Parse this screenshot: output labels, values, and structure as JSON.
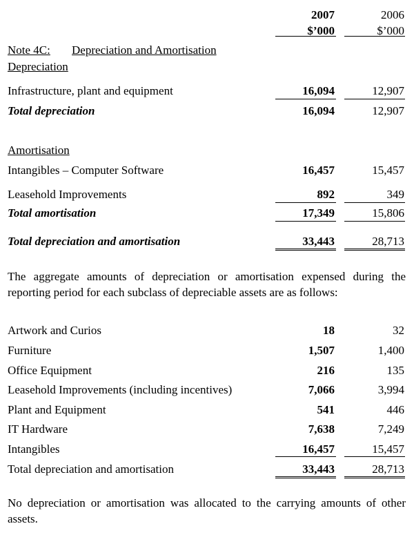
{
  "header": {
    "current": {
      "year": "2007",
      "unit": "$’000"
    },
    "prior": {
      "year": "2006",
      "unit": "$’000"
    }
  },
  "note": {
    "number": "Note 4C:",
    "title": "Depreciation and Amortisation"
  },
  "depreciation": {
    "heading": "Depreciation",
    "rows": [
      [
        "Infrastructure, plant and equipment",
        "16,094",
        "12,907"
      ]
    ],
    "total": [
      "Total depreciation",
      "16,094",
      "12,907"
    ]
  },
  "amortisation": {
    "heading": "Amortisation",
    "rows": [
      [
        "Intangibles – Computer Software",
        "16,457",
        "15,457"
      ],
      [
        "Leasehold Improvements",
        "892",
        "349"
      ]
    ],
    "total": [
      "Total amortisation",
      "17,349",
      "15,806"
    ]
  },
  "grand_total": [
    "Total depreciation and amortisation",
    "33,443",
    "28,713"
  ],
  "paragraph_1": "The aggregate amounts of depreciation or amortisation expensed during the reporting period for each subclass of depreciable assets are as follows:",
  "subclasses": [
    [
      "Artwork and Curios",
      "18",
      "32"
    ],
    [
      "Furniture",
      "1,507",
      "1,400"
    ],
    [
      "Office Equipment",
      "216",
      "135"
    ],
    [
      "Leasehold Improvements (including incentives)",
      "7,066",
      "3,994"
    ],
    [
      "Plant and Equipment",
      "541",
      "446"
    ],
    [
      "IT Hardware",
      "7,638",
      "7,249"
    ],
    [
      "Intangibles",
      "16,457",
      "15,457"
    ],
    [
      "Total depreciation and amortisation",
      "33,443",
      "28,713"
    ]
  ],
  "paragraph_2": "No depreciation or amortisation was allocated to the carrying amounts of other assets."
}
